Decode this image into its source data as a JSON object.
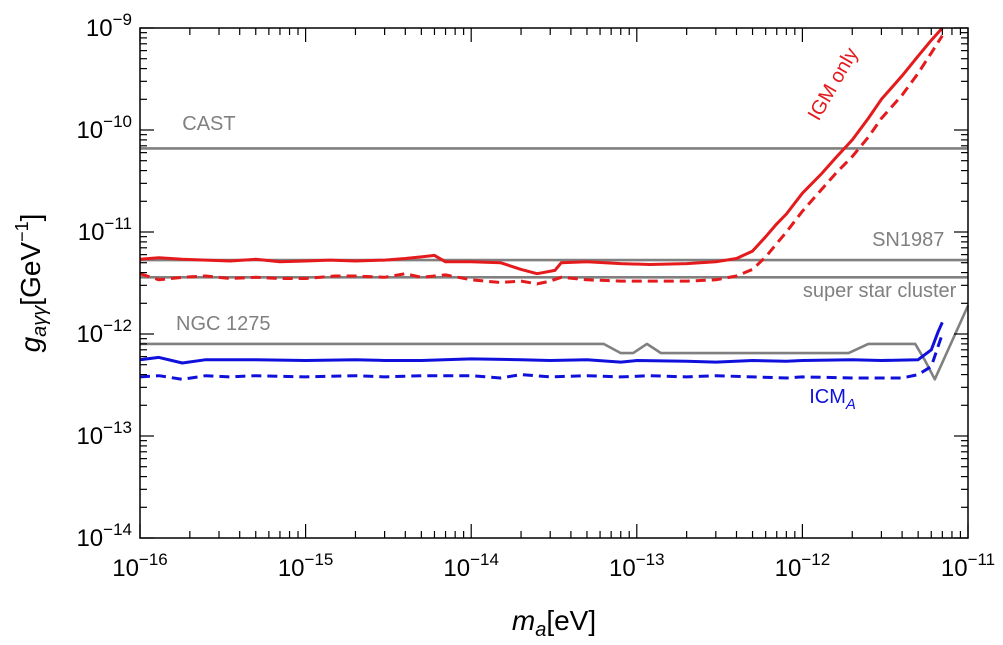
{
  "chart_data": {
    "type": "line",
    "title": "",
    "xlabel": {
      "base": "m",
      "sub": "a",
      "unit": "[eV]"
    },
    "ylabel": {
      "base": "g",
      "sub": "aγγ",
      "unit_pre": "[GeV",
      "unit_sup": "−1",
      "unit_post": "]"
    },
    "x_scale": "log",
    "y_scale": "log",
    "xlim": [
      1e-16,
      1e-11
    ],
    "ylim": [
      1e-14,
      1e-09
    ],
    "x_ticks": [
      {
        "value": 1e-16,
        "base": "10",
        "exp": "−16"
      },
      {
        "value": 1e-15,
        "base": "10",
        "exp": "−15"
      },
      {
        "value": 1e-14,
        "base": "10",
        "exp": "−14"
      },
      {
        "value": 1e-13,
        "base": "10",
        "exp": "−13"
      },
      {
        "value": 1e-12,
        "base": "10",
        "exp": "−12"
      },
      {
        "value": 1e-11,
        "base": "10",
        "exp": "−11"
      }
    ],
    "y_ticks": [
      {
        "value": 1e-14,
        "base": "10",
        "exp": "−14"
      },
      {
        "value": 1e-13,
        "base": "10",
        "exp": "−13"
      },
      {
        "value": 1e-12,
        "base": "10",
        "exp": "−12"
      },
      {
        "value": 1e-11,
        "base": "10",
        "exp": "−11"
      },
      {
        "value": 1e-10,
        "base": "10",
        "exp": "−10"
      },
      {
        "value": 1e-09,
        "base": "10",
        "exp": "−9"
      }
    ],
    "grid": false,
    "colors": {
      "red": "#e41a1c",
      "blue": "#1010dd",
      "gray": "#808080"
    },
    "series": [
      {
        "key": "cast",
        "color": "#808080",
        "dash": false,
        "x": [
          1e-16,
          1e-11
        ],
        "y": [
          6.6e-11,
          6.6e-11
        ]
      },
      {
        "key": "sn1987",
        "color": "#808080",
        "dash": false,
        "x": [
          1e-16,
          1e-11
        ],
        "y": [
          5.3e-12,
          5.3e-12
        ]
      },
      {
        "key": "ssc",
        "color": "#808080",
        "dash": false,
        "x": [
          1e-16,
          1e-11
        ],
        "y": [
          3.6e-12,
          3.6e-12
        ]
      },
      {
        "key": "ngc1275",
        "color": "#808080",
        "dash": false,
        "x": [
          1e-16,
          6.3e-14,
          8e-14,
          9.5e-14,
          1.15e-13,
          1.4e-13,
          1.9e-12,
          2.5e-12,
          3.4e-12,
          4.8e-12,
          5.5e-12,
          6.3e-12,
          1e-11
        ],
        "y": [
          8e-13,
          8e-13,
          6.5e-13,
          6.5e-13,
          8e-13,
          6.5e-13,
          6.5e-13,
          8e-13,
          8e-13,
          8e-13,
          5.5e-13,
          3.6e-13,
          1.9e-12
        ]
      },
      {
        "key": "igm_solid",
        "color": "#e41a1c",
        "dash": false,
        "x": [
          1e-16,
          1.3e-16,
          1.8e-16,
          2.5e-16,
          3.5e-16,
          5e-16,
          7e-16,
          1e-15,
          1.4e-15,
          2e-15,
          3e-15,
          4e-15,
          5e-15,
          6e-15,
          7e-15,
          1e-14,
          1.5e-14,
          2e-14,
          2.5e-14,
          3.2e-14,
          3.5e-14,
          5e-14,
          8e-14,
          1.2e-13,
          2e-13,
          3e-13,
          4e-13,
          5e-13,
          6e-13,
          7e-13,
          8e-13,
          1e-12,
          1.3e-12,
          1.6e-12,
          2e-12,
          2.5e-12,
          3e-12,
          4e-12,
          5e-12,
          6e-12,
          7e-12
        ],
        "y": [
          5.4e-12,
          5.6e-12,
          5.4e-12,
          5.3e-12,
          5.2e-12,
          5.4e-12,
          5.1e-12,
          5.2e-12,
          5.3e-12,
          5.2e-12,
          5.3e-12,
          5.5e-12,
          5.7e-12,
          5.9e-12,
          5.1e-12,
          5.1e-12,
          5e-12,
          4.3e-12,
          3.9e-12,
          4.2e-12,
          5e-12,
          5.1e-12,
          4.9e-12,
          4.8e-12,
          4.9e-12,
          5.1e-12,
          5.5e-12,
          6.5e-12,
          9e-12,
          1.2e-11,
          1.5e-11,
          2.4e-11,
          3.7e-11,
          5.4e-11,
          8e-11,
          1.3e-10,
          2e-10,
          3.4e-10,
          5.3e-10,
          7.6e-10,
          1e-09
        ]
      },
      {
        "key": "igm_dashed",
        "color": "#e41a1c",
        "dash": true,
        "x": [
          1e-16,
          1.3e-16,
          1.8e-16,
          2.5e-16,
          3.5e-16,
          5e-16,
          7e-16,
          1e-15,
          1.5e-15,
          2e-15,
          3e-15,
          4e-15,
          5e-15,
          7e-15,
          1e-14,
          1.5e-14,
          2e-14,
          2.5e-14,
          3e-14,
          3.5e-14,
          5e-14,
          8e-14,
          1.2e-13,
          2e-13,
          3e-13,
          4e-13,
          5e-13,
          6e-13,
          7e-13,
          8e-13,
          1e-12,
          1.3e-12,
          1.6e-12,
          2e-12,
          2.5e-12,
          3e-12,
          4e-12,
          5e-12,
          6e-12,
          7e-12
        ],
        "y": [
          3.9e-12,
          3.4e-12,
          3.6e-12,
          3.7e-12,
          3.5e-12,
          3.6e-12,
          3.5e-12,
          3.5e-12,
          3.7e-12,
          3.7e-12,
          3.6e-12,
          3.9e-12,
          3.6e-12,
          3.8e-12,
          3.4e-12,
          3.2e-12,
          3.3e-12,
          3.1e-12,
          3.3e-12,
          3.6e-12,
          3.4e-12,
          3.3e-12,
          3.3e-12,
          3.3e-12,
          3.4e-12,
          3.7e-12,
          4.3e-12,
          5.7e-12,
          7.7e-12,
          1e-11,
          1.6e-11,
          2.6e-11,
          3.8e-11,
          5.5e-11,
          8.5e-11,
          1.3e-10,
          2.2e-10,
          3.6e-10,
          5.7e-10,
          8.4e-10
        ]
      },
      {
        "key": "icm_solid",
        "color": "#1010dd",
        "dash": false,
        "x": [
          1e-16,
          1.3e-16,
          1.8e-16,
          2.5e-16,
          3.5e-16,
          5e-16,
          1e-15,
          2e-15,
          3e-15,
          5e-15,
          1e-14,
          2e-14,
          3e-14,
          5e-14,
          8e-14,
          1e-13,
          2e-13,
          3e-13,
          5e-13,
          8e-13,
          1e-12,
          2e-12,
          3e-12,
          5e-12,
          6e-12,
          6.6e-12,
          7e-12
        ],
        "y": [
          5.6e-13,
          5.9e-13,
          5.2e-13,
          5.6e-13,
          5.6e-13,
          5.6e-13,
          5.5e-13,
          5.6e-13,
          5.5e-13,
          5.5e-13,
          5.7e-13,
          5.6e-13,
          5.5e-13,
          5.6e-13,
          5.3e-13,
          5.5e-13,
          5.4e-13,
          5.3e-13,
          5.5e-13,
          5.4e-13,
          5.5e-13,
          5.6e-13,
          5.5e-13,
          5.6e-13,
          7e-13,
          1.05e-12,
          1.3e-12
        ]
      },
      {
        "key": "icm_dashed",
        "color": "#1010dd",
        "dash": true,
        "x": [
          1e-16,
          1.3e-16,
          1.8e-16,
          2.5e-16,
          3.5e-16,
          5e-16,
          1e-15,
          2e-15,
          3e-15,
          5e-15,
          1e-14,
          1.5e-14,
          2e-14,
          3e-14,
          5e-14,
          8e-14,
          1.2e-13,
          2e-13,
          3e-13,
          5e-13,
          8e-13,
          1e-12,
          2e-12,
          3e-12,
          4e-12,
          5e-12,
          6e-12,
          7e-12
        ],
        "y": [
          3.8e-13,
          3.9e-13,
          3.6e-13,
          3.9e-13,
          3.8e-13,
          3.9e-13,
          3.8e-13,
          3.9e-13,
          3.8e-13,
          3.9e-13,
          3.9e-13,
          3.7e-13,
          4e-13,
          3.8e-13,
          3.9e-13,
          3.8e-13,
          3.9e-13,
          3.8e-13,
          3.9e-13,
          3.8e-13,
          3.7e-13,
          3.8e-13,
          3.7e-13,
          3.7e-13,
          3.7e-13,
          4e-13,
          4.8e-13,
          1e-12
        ]
      }
    ],
    "annotations": [
      {
        "key": "cast",
        "text": "CAST",
        "sub": "",
        "x": 1.8e-16,
        "y": 1e-10,
        "color": "#808080",
        "anchor": "start",
        "rotate": 0
      },
      {
        "key": "sn1987",
        "text": "SN1987",
        "sub": "",
        "x": 7.2e-12,
        "y": 7.3e-12,
        "color": "#808080",
        "anchor": "end",
        "rotate": 0
      },
      {
        "key": "ssc",
        "text": "super star cluster",
        "sub": "",
        "x": 8.5e-12,
        "y": 2.3e-12,
        "color": "#808080",
        "anchor": "end",
        "rotate": 0
      },
      {
        "key": "ngc1275",
        "text": "NGC 1275",
        "sub": "",
        "x": 1.65e-16,
        "y": 1.1e-12,
        "color": "#808080",
        "anchor": "start",
        "rotate": 0
      },
      {
        "key": "igm",
        "text": "IGM only",
        "sub": "",
        "x": 1.25e-12,
        "y": 1.2e-10,
        "color": "#e41a1c",
        "anchor": "start",
        "rotate": -60
      },
      {
        "key": "icm",
        "text": "ICM",
        "sub": "A",
        "x": 1.1e-12,
        "y": 2.1e-13,
        "color": "#1010dd",
        "anchor": "start",
        "rotate": 0
      }
    ]
  }
}
